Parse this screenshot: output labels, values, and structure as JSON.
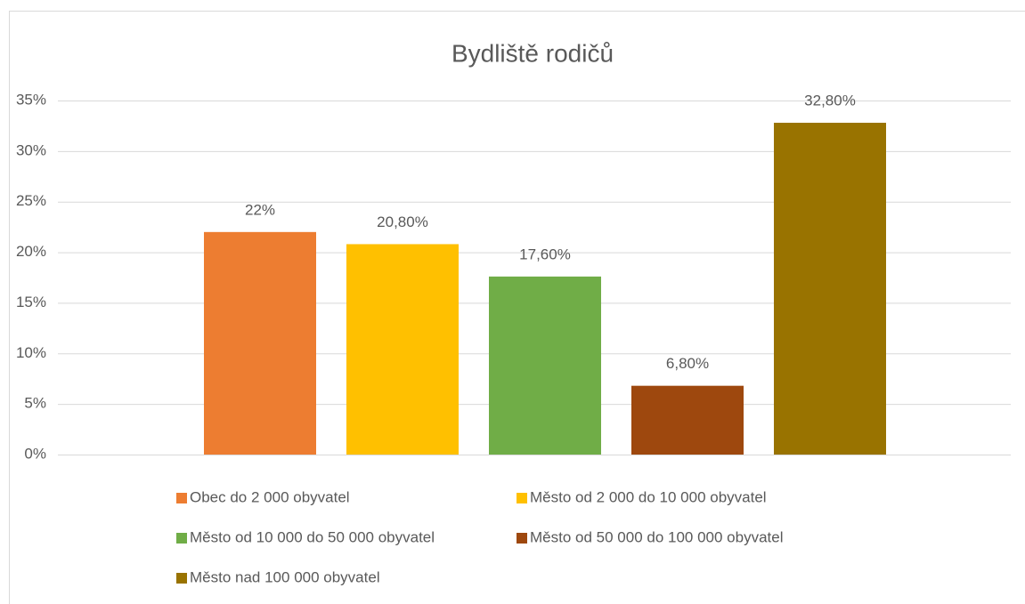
{
  "chart_data": {
    "type": "bar",
    "title": "Bydliště rodičů",
    "series": [
      {
        "name": "Obec do 2 000 obyvatel",
        "color": "#ed7d31",
        "values": [
          22
        ],
        "value_labels": [
          "22%"
        ]
      },
      {
        "name": "Město od 2 000 do 10 000 obyvatel",
        "color": "#ffc000",
        "values": [
          20.8
        ],
        "value_labels": [
          "20,80%"
        ]
      },
      {
        "name": "Město od 10 000 do 50 000 obyvatel",
        "color": "#70ad47",
        "values": [
          17.6
        ],
        "value_labels": [
          "17,60%"
        ]
      },
      {
        "name": "Město od 50 000 do 100 000 obyvatel",
        "color": "#9e480e",
        "values": [
          6.8
        ],
        "value_labels": [
          "6,80%"
        ]
      },
      {
        "name": "Město nad 100 000 obyvatel",
        "color": "#997300",
        "values": [
          32.8
        ],
        "value_labels": [
          "32,80%"
        ]
      }
    ],
    "ylim": [
      0,
      35
    ],
    "yticks": [
      {
        "value": 0,
        "label": "0%"
      },
      {
        "value": 5,
        "label": "5%"
      },
      {
        "value": 10,
        "label": "10%"
      },
      {
        "value": 15,
        "label": "15%"
      },
      {
        "value": 20,
        "label": "20%"
      },
      {
        "value": 25,
        "label": "25%"
      },
      {
        "value": 30,
        "label": "30%"
      },
      {
        "value": 35,
        "label": "35%"
      }
    ],
    "grid": true,
    "legend": "bottom"
  }
}
